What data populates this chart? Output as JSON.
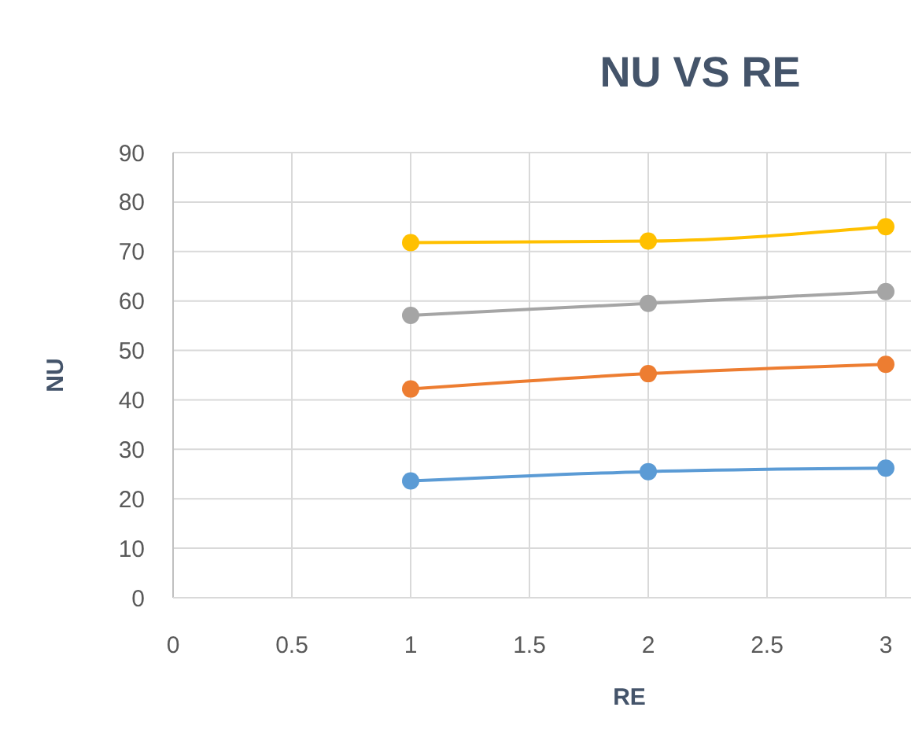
{
  "chart_data": {
    "type": "line",
    "title": "NU VS RE",
    "xlabel": "RE",
    "ylabel": "NU",
    "x": [
      1,
      2,
      3
    ],
    "series": [
      {
        "color": "#5b9bd5",
        "values": [
          23.6,
          25.5,
          26.2
        ]
      },
      {
        "color": "#ed7d31",
        "values": [
          42.2,
          45.3,
          47.2
        ]
      },
      {
        "color": "#a5a5a5",
        "values": [
          57.1,
          59.5,
          61.9
        ]
      },
      {
        "color": "#ffc000",
        "values": [
          71.8,
          72.1,
          75.0
        ]
      }
    ],
    "xlim": [
      0,
      3
    ],
    "xticks": [
      0,
      0.5,
      1,
      1.5,
      2,
      2.5,
      3
    ],
    "ylim": [
      0,
      90
    ],
    "yticks": [
      0,
      10,
      20,
      30,
      40,
      50,
      60,
      70,
      80,
      90
    ],
    "grid": true,
    "marker": "circle",
    "line_style": "solid"
  }
}
